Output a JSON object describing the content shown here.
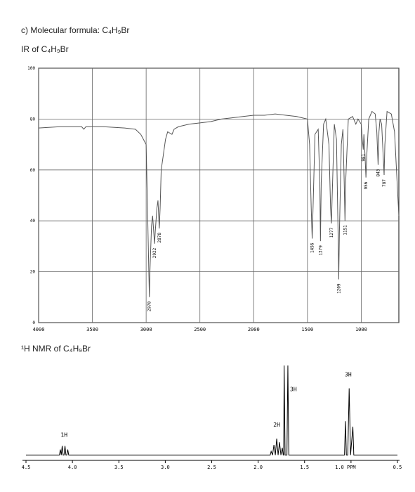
{
  "header": {
    "formula": "c) Molecular formula: C₄H₉Br",
    "ir_heading": "IR of C₄H₉Br",
    "nmr_heading": "¹H NMR of C₄H₉Br"
  },
  "chart_data": [
    {
      "type": "line",
      "color": "#555555",
      "grid": true,
      "xlim": [
        4000,
        650
      ],
      "ylim": [
        0,
        100
      ],
      "xticks": [
        4000,
        3500,
        3000,
        2500,
        2000,
        1500,
        1000
      ],
      "yticks": [
        0,
        20,
        40,
        60,
        80,
        100
      ],
      "x": [
        4000,
        3800,
        3600,
        3580,
        3560,
        3400,
        3200,
        3100,
        3050,
        3000,
        2990,
        2975,
        2970,
        2965,
        2950,
        2940,
        2930,
        2922,
        2915,
        2900,
        2890,
        2878,
        2870,
        2860,
        2850,
        2840,
        2820,
        2800,
        2760,
        2740,
        2700,
        2600,
        2500,
        2400,
        2300,
        2200,
        2100,
        2000,
        1900,
        1800,
        1700,
        1600,
        1550,
        1500,
        1480,
        1465,
        1456,
        1448,
        1430,
        1400,
        1385,
        1379,
        1372,
        1350,
        1330,
        1300,
        1285,
        1277,
        1270,
        1250,
        1230,
        1215,
        1209,
        1203,
        1185,
        1170,
        1158,
        1151,
        1145,
        1120,
        1080,
        1050,
        1030,
        1000,
        990,
        981,
        975,
        965,
        956,
        948,
        930,
        900,
        870,
        855,
        843,
        835,
        825,
        810,
        795,
        787,
        780,
        760,
        720,
        690,
        660,
        650
      ],
      "values": [
        76.5,
        77,
        77,
        76,
        77,
        77,
        76.5,
        76,
        74,
        70,
        50,
        20,
        10,
        20,
        38,
        42,
        36,
        31,
        36,
        45,
        48,
        37,
        45,
        60,
        63,
        66,
        72,
        75,
        74,
        76,
        77,
        78,
        78.5,
        79,
        80,
        80.5,
        81,
        81.5,
        81.5,
        82,
        81.5,
        81,
        80.5,
        80,
        70,
        45,
        33,
        45,
        74,
        76,
        55,
        32,
        55,
        78,
        80,
        70,
        45,
        39,
        50,
        78,
        72,
        35,
        17,
        35,
        70,
        76,
        55,
        40,
        55,
        80,
        81,
        78,
        80,
        78,
        72,
        68,
        74,
        66,
        57,
        66,
        80,
        83,
        82,
        75,
        62,
        75,
        80,
        78,
        65,
        58,
        70,
        83,
        82,
        75,
        50,
        42
      ],
      "peak_labels": [
        2970,
        2922,
        2878,
        1456,
        1379,
        1277,
        1209,
        1151,
        981,
        956,
        843,
        787
      ]
    },
    {
      "type": "line",
      "color": "#000000",
      "xlim": [
        4.5,
        0.5
      ],
      "ylim": [
        0,
        100
      ],
      "xticks": [
        4.5,
        {
          "value": 4,
          "label": "4.0"
        },
        3.5,
        {
          "value": 3,
          "label": "3.0"
        },
        2.5,
        {
          "value": 2,
          "label": "2.0"
        },
        1.5,
        {
          "value": 1,
          "label": "1.0 PPM"
        },
        0.5
      ],
      "x": [
        4.5,
        4.14,
        4.13,
        4.12,
        4.11,
        4.1,
        4.09,
        4.08,
        4.07,
        4.06,
        4.05,
        4.04,
        4.03,
        1.87,
        1.86,
        1.845,
        1.83,
        1.815,
        1.8,
        1.785,
        1.77,
        1.755,
        1.74,
        1.73,
        1.725,
        1.72,
        1.71,
        1.69,
        1.68,
        1.67,
        1.07,
        1.06,
        1.05,
        1.035,
        1.02,
        1.005,
        0.98,
        0.97,
        0.5
      ],
      "values": [
        2,
        2,
        8,
        2,
        12,
        2,
        2,
        12,
        2,
        2,
        8,
        2,
        2,
        2,
        6,
        2,
        13,
        2,
        20,
        2,
        16,
        2,
        10,
        2,
        2,
        100,
        2,
        2,
        100,
        2,
        2,
        39,
        2,
        2,
        75,
        2,
        33,
        2,
        2
      ],
      "annotations": [
        {
          "x": 4.09,
          "y": 22,
          "text": "1H"
        },
        {
          "x": 1.8,
          "y": 33,
          "text": "2H"
        },
        {
          "x": 1.62,
          "y": 72,
          "text": "3H"
        },
        {
          "x": 1.03,
          "y": 88,
          "text": "3H"
        }
      ]
    }
  ]
}
